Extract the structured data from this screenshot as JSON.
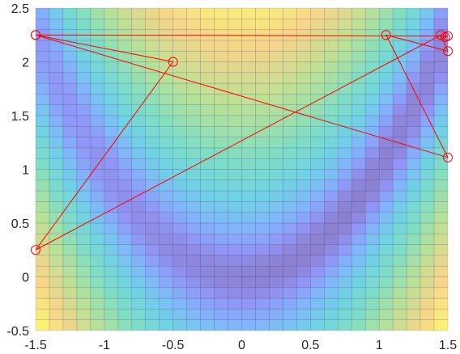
{
  "chart_data": {
    "type": "heatmap",
    "title": "",
    "xlabel": "",
    "ylabel": "",
    "xlim": [
      -1.5,
      1.5
    ],
    "ylim": [
      -0.5,
      2.5
    ],
    "xticks": [
      -1.5,
      -1,
      -0.5,
      0,
      0.5,
      1,
      1.5
    ],
    "yticks": [
      -0.5,
      0,
      0.5,
      1,
      1.5,
      2,
      2.5
    ],
    "xtick_labels": [
      "-1.5",
      "-1",
      "-0.5",
      "0",
      "0.5",
      "1",
      "1.5"
    ],
    "ytick_labels": [
      "-0.5",
      "0",
      "0.5",
      "1",
      "1.5",
      "2",
      "2.5"
    ],
    "grid": "on",
    "colormap": "parula",
    "alpha": 0.6,
    "function": "Rosenbrock f(x,y) = 100*(y - x^2)^2 + (1 - x)^2",
    "line_series": {
      "name": "",
      "color": "#ff0000",
      "marker": "circle",
      "points": [
        [
          -1.5,
          2.25
        ],
        [
          1.5,
          1.11
        ],
        [
          1.05,
          2.25
        ],
        [
          1.5,
          2.1
        ],
        [
          1.45,
          2.25
        ],
        [
          -1.5,
          0.25
        ],
        [
          -0.5,
          2.0
        ],
        [
          -1.5,
          2.25
        ],
        [
          1.5,
          2.24
        ],
        [
          1.48,
          2.23
        ]
      ]
    }
  }
}
